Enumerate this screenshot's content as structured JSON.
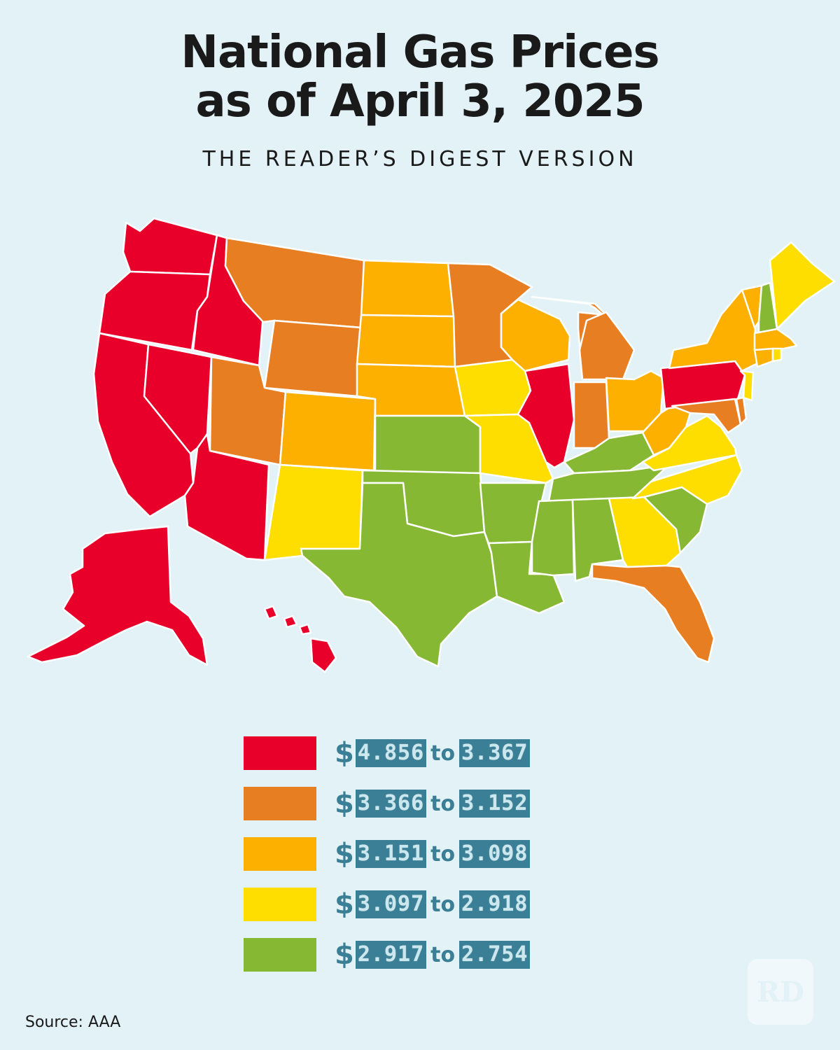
{
  "title_line1": "National Gas Prices",
  "title_line2": "as of April 3, 2025",
  "subtitle": "THE READER’S DIGEST VERSION",
  "source": "Source: AAA",
  "logo_text": "RD",
  "legend": [
    {
      "dollar": "$",
      "low": "4.856",
      "to": "to",
      "high": "3.367",
      "color": "#e8002a"
    },
    {
      "dollar": "$",
      "low": "3.366",
      "to": "to",
      "high": "3.152",
      "color": "#e87e22"
    },
    {
      "dollar": "$",
      "low": "3.151",
      "to": "to",
      "high": "3.098",
      "color": "#fdb000"
    },
    {
      "dollar": "$",
      "low": "3.097",
      "to": "to",
      "high": "2.918",
      "color": "#fede00"
    },
    {
      "dollar": "$",
      "low": "2.917",
      "to": "to",
      "high": "2.754",
      "color": "#86b833"
    }
  ],
  "state_tiers": {
    "red": [
      "WA",
      "OR",
      "CA",
      "NV",
      "ID",
      "AZ",
      "AK",
      "HI",
      "IL",
      "PA"
    ],
    "orange": [
      "MT",
      "WY",
      "UT",
      "MN",
      "MI",
      "IN",
      "FL",
      "MD",
      "DE"
    ],
    "amber": [
      "ND",
      "SD",
      "NE",
      "CO",
      "WI",
      "OH",
      "WV",
      "NY",
      "VT",
      "CT",
      "MA"
    ],
    "yellow": [
      "NM",
      "IA",
      "MO",
      "VA",
      "NC",
      "GA",
      "ME",
      "NJ",
      "RI"
    ],
    "green": [
      "KS",
      "OK",
      "TX",
      "AR",
      "LA",
      "MS",
      "AL",
      "TN",
      "KY",
      "SC",
      "NH"
    ]
  }
}
